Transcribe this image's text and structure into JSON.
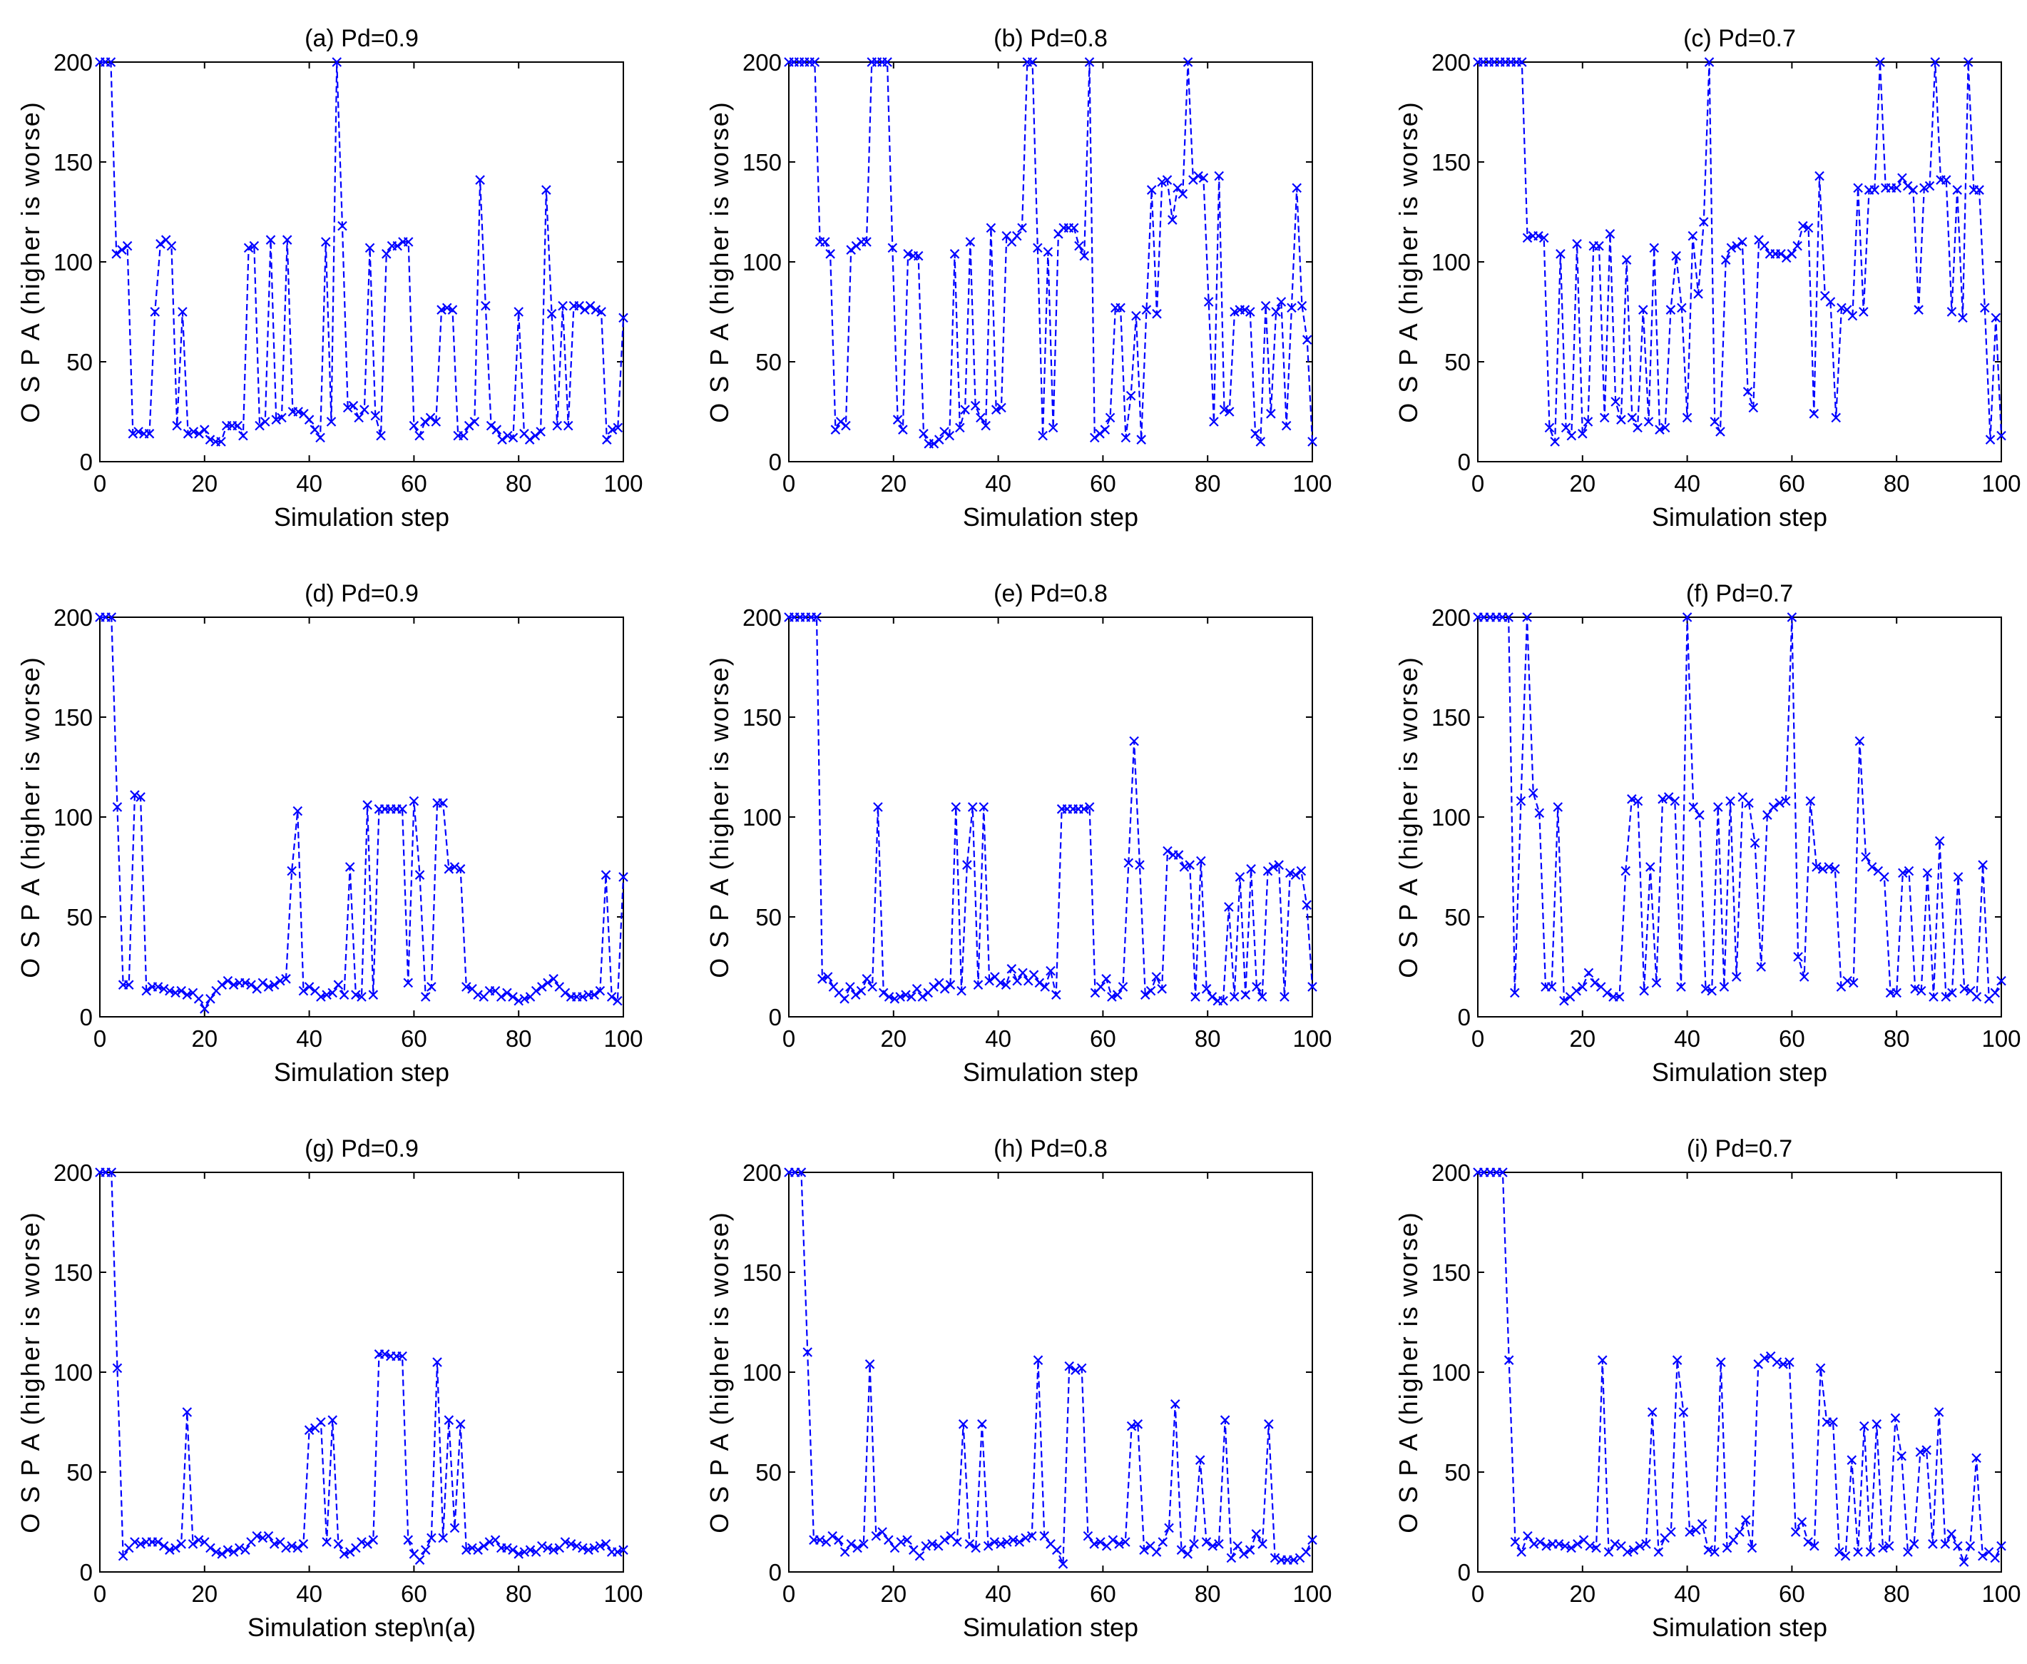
{
  "chart_data": [
    {
      "type": "line",
      "title": "(a) Pd=0.9",
      "xlabel": "Simulation step",
      "ylabel": "O S P A  (higher is worse)",
      "xlim": [
        0,
        100
      ],
      "ylim": [
        0,
        200
      ],
      "xticks": [
        "0",
        "20",
        "40",
        "60",
        "80",
        "100"
      ],
      "yticks": [
        "0",
        "50",
        "100",
        "150",
        "200"
      ],
      "series": [
        {
          "name": "OSPA",
          "color": "#0000ff",
          "marker": "x",
          "values": [
            200,
            200,
            200,
            104,
            106,
            108,
            14,
            15,
            14,
            14,
            75,
            109,
            111,
            108,
            18,
            75,
            14,
            15,
            14,
            16,
            11,
            10,
            10,
            18,
            18,
            18,
            13,
            107,
            108,
            18,
            20,
            111,
            21,
            22,
            111,
            25,
            25,
            24,
            21,
            16,
            12,
            110,
            20,
            200,
            118,
            27,
            28,
            22,
            26,
            107,
            23,
            13,
            104,
            108,
            108,
            110,
            110,
            18,
            13,
            20,
            22,
            20,
            76,
            77,
            76,
            13,
            13,
            18,
            20,
            141,
            78,
            18,
            16,
            11,
            13,
            12,
            75,
            14,
            11,
            13,
            15,
            136,
            74,
            18,
            78,
            18,
            78,
            78,
            76,
            78,
            76,
            75,
            11,
            16,
            17,
            72
          ]
        }
      ]
    },
    {
      "type": "line",
      "title": "(b) Pd=0.8",
      "xlabel": "Simulation step",
      "ylabel": "O S P A  (higher is worse)",
      "xlim": [
        0,
        100
      ],
      "ylim": [
        0,
        200
      ],
      "xticks": [
        "0",
        "20",
        "40",
        "60",
        "80",
        "100"
      ],
      "yticks": [
        "0",
        "50",
        "100",
        "150",
        "200"
      ],
      "series": [
        {
          "name": "OSPA",
          "color": "#0000ff",
          "marker": "x",
          "values": [
            200,
            200,
            200,
            200,
            200,
            200,
            110,
            110,
            104,
            16,
            20,
            18,
            106,
            108,
            110,
            110,
            200,
            200,
            200,
            200,
            107,
            21,
            16,
            104,
            103,
            103,
            14,
            9,
            9,
            11,
            15,
            13,
            104,
            17,
            26,
            110,
            28,
            22,
            18,
            117,
            26,
            27,
            113,
            110,
            113,
            117,
            200,
            200,
            107,
            13,
            105,
            17,
            114,
            117,
            117,
            117,
            108,
            103,
            200,
            12,
            14,
            16,
            22,
            77,
            77,
            12,
            33,
            73,
            11,
            76,
            136,
            74,
            140,
            141,
            121,
            137,
            134,
            200,
            141,
            143,
            142,
            80,
            20,
            143,
            26,
            25,
            75,
            76,
            76,
            75,
            14,
            10,
            78,
            24,
            75,
            80,
            18,
            77,
            137,
            78,
            61,
            10
          ]
        }
      ]
    },
    {
      "type": "line",
      "title": "(c) Pd=0.7",
      "xlabel": "Simulation step",
      "ylabel": "O S P A  (higher is worse)",
      "xlim": [
        0,
        100
      ],
      "ylim": [
        0,
        200
      ],
      "xticks": [
        "0",
        "20",
        "40",
        "60",
        "80",
        "100"
      ],
      "yticks": [
        "0",
        "50",
        "100",
        "150",
        "200"
      ],
      "series": [
        {
          "name": "OSPA",
          "color": "#0000ff",
          "marker": "x",
          "values": [
            200,
            200,
            200,
            200,
            200,
            200,
            200,
            200,
            200,
            112,
            113,
            113,
            112,
            17,
            10,
            104,
            17,
            13,
            109,
            14,
            20,
            108,
            108,
            22,
            114,
            30,
            21,
            101,
            22,
            17,
            76,
            20,
            107,
            16,
            17,
            76,
            103,
            77,
            22,
            113,
            84,
            120,
            200,
            20,
            15,
            101,
            107,
            108,
            110,
            35,
            27,
            111,
            108,
            104,
            104,
            104,
            102,
            104,
            108,
            118,
            117,
            24,
            143,
            83,
            80,
            22,
            77,
            76,
            73,
            137,
            75,
            136,
            136,
            200,
            137,
            137,
            137,
            142,
            138,
            136,
            76,
            137,
            138,
            200,
            141,
            141,
            75,
            136,
            72,
            200,
            136,
            136,
            77,
            11,
            72,
            13
          ]
        }
      ]
    },
    {
      "type": "line",
      "title": "(d) Pd=0.9",
      "xlabel": "Simulation step",
      "ylabel": "O S P A  (higher is worse)",
      "xlim": [
        0,
        100
      ],
      "ylim": [
        0,
        200
      ],
      "xticks": [
        "0",
        "20",
        "40",
        "60",
        "80",
        "100"
      ],
      "yticks": [
        "0",
        "50",
        "100",
        "150",
        "200"
      ],
      "series": [
        {
          "name": "OSPA",
          "color": "#0000ff",
          "marker": "x",
          "values": [
            200,
            200,
            200,
            105,
            16,
            16,
            111,
            110,
            13,
            15,
            15,
            14,
            13,
            12,
            13,
            11,
            12,
            9,
            4,
            9,
            13,
            16,
            18,
            16,
            17,
            17,
            16,
            14,
            17,
            15,
            16,
            18,
            19,
            73,
            103,
            13,
            15,
            13,
            10,
            11,
            12,
            16,
            11,
            75,
            11,
            10,
            106,
            11,
            104,
            104,
            104,
            104,
            104,
            17,
            108,
            71,
            10,
            15,
            107,
            107,
            74,
            75,
            74,
            15,
            14,
            11,
            10,
            13,
            13,
            10,
            12,
            10,
            8,
            9,
            10,
            13,
            15,
            17,
            19,
            15,
            12,
            10,
            10,
            10,
            11,
            11,
            13,
            71,
            10,
            8,
            70
          ]
        }
      ]
    },
    {
      "type": "line",
      "title": "(e) Pd=0.8",
      "xlabel": "Simulation step",
      "ylabel": "O S P A  (higher is worse)",
      "xlim": [
        0,
        100
      ],
      "ylim": [
        0,
        200
      ],
      "xticks": [
        "0",
        "20",
        "40",
        "60",
        "80",
        "100"
      ],
      "yticks": [
        "0",
        "50",
        "100",
        "150",
        "200"
      ],
      "series": [
        {
          "name": "OSPA",
          "color": "#0000ff",
          "marker": "x",
          "values": [
            200,
            200,
            200,
            200,
            200,
            200,
            19,
            20,
            15,
            12,
            9,
            15,
            11,
            13,
            19,
            15,
            105,
            12,
            10,
            9,
            10,
            11,
            10,
            14,
            10,
            12,
            15,
            17,
            14,
            16,
            105,
            13,
            76,
            105,
            16,
            105,
            18,
            20,
            17,
            16,
            24,
            18,
            22,
            18,
            21,
            17,
            15,
            23,
            11,
            104,
            104,
            104,
            104,
            104,
            105,
            12,
            15,
            19,
            10,
            11,
            15,
            77,
            138,
            76,
            11,
            13,
            20,
            14,
            83,
            81,
            81,
            75,
            76,
            10,
            78,
            14,
            10,
            8,
            8,
            55,
            10,
            70,
            11,
            74,
            15,
            10,
            73,
            75,
            76,
            10,
            72,
            71,
            73,
            56,
            15
          ]
        }
      ]
    },
    {
      "type": "line",
      "title": "(f) Pd=0.7",
      "xlabel": "Simulation step",
      "ylabel": "O S P A  (higher is worse)",
      "xlim": [
        0,
        100
      ],
      "ylim": [
        0,
        200
      ],
      "xticks": [
        "0",
        "20",
        "40",
        "60",
        "80",
        "100"
      ],
      "yticks": [
        "0",
        "50",
        "100",
        "150",
        "200"
      ],
      "series": [
        {
          "name": "OSPA",
          "color": "#0000ff",
          "marker": "x",
          "values": [
            200,
            200,
            200,
            200,
            200,
            200,
            12,
            108,
            200,
            112,
            102,
            15,
            15,
            105,
            8,
            10,
            13,
            15,
            22,
            17,
            15,
            12,
            10,
            10,
            73,
            109,
            108,
            13,
            75,
            17,
            109,
            110,
            108,
            15,
            200,
            105,
            101,
            14,
            13,
            105,
            15,
            108,
            20,
            110,
            107,
            87,
            25,
            101,
            105,
            107,
            108,
            200,
            30,
            20,
            108,
            75,
            74,
            75,
            74,
            15,
            18,
            17,
            138,
            80,
            75,
            73,
            70,
            12,
            12,
            72,
            73,
            14,
            13,
            72,
            10,
            88,
            10,
            12,
            70,
            14,
            13,
            10,
            76,
            9,
            12,
            18
          ]
        }
      ]
    },
    {
      "type": "line",
      "title": "(g) Pd=0.9",
      "xlabel": "Simulation step\\n(a)",
      "ylabel": "O S P A  (higher is worse)",
      "xlim": [
        0,
        100
      ],
      "ylim": [
        0,
        200
      ],
      "xticks": [
        "0",
        "20",
        "40",
        "60",
        "80",
        "100"
      ],
      "yticks": [
        "0",
        "50",
        "100",
        "150",
        "200"
      ],
      "series": [
        {
          "name": "OSPA",
          "color": "#0000ff",
          "marker": "x",
          "values": [
            200,
            200,
            200,
            102,
            8,
            12,
            15,
            14,
            15,
            15,
            15,
            13,
            11,
            12,
            14,
            80,
            14,
            16,
            15,
            12,
            10,
            9,
            11,
            10,
            12,
            11,
            15,
            18,
            17,
            18,
            14,
            15,
            12,
            13,
            12,
            14,
            71,
            72,
            75,
            15,
            76,
            14,
            9,
            10,
            12,
            15,
            14,
            16,
            109,
            109,
            108,
            108,
            108,
            16,
            9,
            6,
            11,
            17,
            105,
            17,
            76,
            22,
            74,
            11,
            12,
            11,
            13,
            15,
            16,
            12,
            12,
            11,
            9,
            10,
            11,
            10,
            13,
            12,
            11,
            12,
            15,
            14,
            13,
            12,
            11,
            12,
            13,
            14,
            10,
            10,
            11
          ]
        }
      ]
    },
    {
      "type": "line",
      "title": "(h) Pd=0.8",
      "xlabel": "Simulation step",
      "ylabel": "O S P A  (higher is worse)",
      "xlim": [
        0,
        100
      ],
      "ylim": [
        0,
        200
      ],
      "xticks": [
        "0",
        "20",
        "40",
        "60",
        "80",
        "100"
      ],
      "yticks": [
        "0",
        "50",
        "100",
        "150",
        "200"
      ],
      "series": [
        {
          "name": "OSPA",
          "color": "#0000ff",
          "marker": "x",
          "values": [
            200,
            200,
            200,
            110,
            16,
            16,
            15,
            18,
            16,
            10,
            14,
            12,
            14,
            104,
            18,
            20,
            16,
            12,
            15,
            16,
            11,
            8,
            13,
            14,
            13,
            16,
            18,
            15,
            74,
            14,
            12,
            74,
            13,
            15,
            14,
            15,
            16,
            15,
            17,
            18,
            106,
            18,
            14,
            11,
            4,
            103,
            101,
            102,
            18,
            14,
            15,
            13,
            16,
            14,
            15,
            73,
            74,
            11,
            13,
            10,
            15,
            22,
            84,
            11,
            9,
            14,
            56,
            15,
            13,
            14,
            76,
            7,
            13,
            9,
            11,
            19,
            14,
            74,
            7,
            6,
            6,
            6,
            7,
            10,
            16
          ]
        }
      ]
    },
    {
      "type": "line",
      "title": "(i) Pd=0.7",
      "xlabel": "Simulation step",
      "ylabel": "O S P A  (higher is worse)",
      "xlim": [
        0,
        100
      ],
      "ylim": [
        0,
        200
      ],
      "xticks": [
        "0",
        "20",
        "40",
        "60",
        "80",
        "100"
      ],
      "yticks": [
        "0",
        "50",
        "100",
        "150",
        "200"
      ],
      "series": [
        {
          "name": "OSPA",
          "color": "#0000ff",
          "marker": "x",
          "values": [
            200,
            200,
            200,
            200,
            200,
            106,
            15,
            10,
            18,
            14,
            15,
            13,
            14,
            14,
            13,
            12,
            14,
            16,
            13,
            12,
            106,
            10,
            14,
            13,
            10,
            11,
            13,
            14,
            80,
            10,
            17,
            20,
            106,
            80,
            20,
            21,
            24,
            11,
            10,
            105,
            12,
            16,
            20,
            26,
            12,
            104,
            107,
            108,
            105,
            104,
            105,
            20,
            25,
            15,
            13,
            102,
            75,
            75,
            10,
            8,
            56,
            10,
            73,
            10,
            74,
            12,
            13,
            77,
            58,
            10,
            14,
            60,
            61,
            14,
            80,
            14,
            19,
            13,
            5,
            13,
            57,
            8,
            10,
            7,
            13
          ]
        }
      ]
    }
  ]
}
